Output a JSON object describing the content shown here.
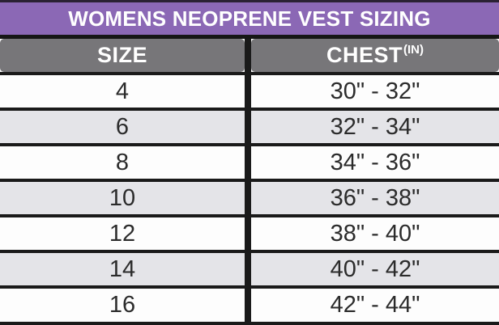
{
  "title": "WOMENS NEOPRENE VEST SIZING",
  "header": {
    "size_label": "SIZE",
    "chest_label": "CHEST",
    "chest_superscript": "(IN)"
  },
  "rows": [
    {
      "size": "4",
      "chest": "30\" - 32\""
    },
    {
      "size": "6",
      "chest": "32\" - 34\""
    },
    {
      "size": "8",
      "chest": "34\" - 36\""
    },
    {
      "size": "10",
      "chest": "36\" - 38\""
    },
    {
      "size": "12",
      "chest": "38\" - 40\""
    },
    {
      "size": "14",
      "chest": "40\" - 42\""
    },
    {
      "size": "16",
      "chest": "42\" - 44\""
    }
  ],
  "colors": {
    "title_background": "#8b68b5",
    "header_background": "#777679",
    "stripe_gray": "#e4e4e8",
    "stripe_white": "#fdfdfd",
    "line_black": "#1a1a1a",
    "title_text": "#ffffff",
    "cell_text": "#2b2b2b"
  },
  "chart_data": {
    "type": "table",
    "title": "WOMENS NEOPRENE VEST SIZING",
    "columns": [
      "SIZE",
      "CHEST(IN)"
    ],
    "rows": [
      [
        "4",
        "30\" - 32\""
      ],
      [
        "6",
        "32\" - 34\""
      ],
      [
        "8",
        "34\" - 36\""
      ],
      [
        "10",
        "36\" - 38\""
      ],
      [
        "12",
        "38\" - 40\""
      ],
      [
        "14",
        "40\" - 42\""
      ],
      [
        "16",
        "42\" - 44\""
      ]
    ]
  }
}
